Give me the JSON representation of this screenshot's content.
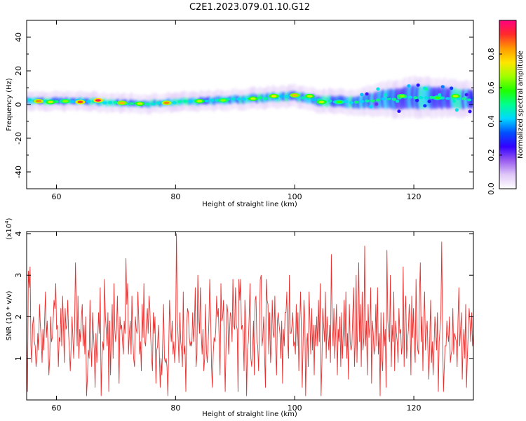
{
  "title": "C2E1.2023.079.01.10.G12",
  "colors": {
    "snr_line": "#e8302e",
    "axes": "#000000",
    "colormap": [
      "#ffffff",
      "#e0c8f8",
      "#9a5cf0",
      "#3300ff",
      "#0050ff",
      "#00d8ff",
      "#00ff90",
      "#20ff00",
      "#a0ff00",
      "#ffe600",
      "#ff9a00",
      "#ff2a2a",
      "#ff0080"
    ]
  },
  "chart_data": [
    {
      "type": "heatmap",
      "xlabel": "Height of straight line (km)",
      "ylabel": "Frequency (Hz)",
      "xlim": [
        55,
        130
      ],
      "ylim": [
        -50,
        50
      ],
      "xticks": [
        60,
        80,
        100,
        120
      ],
      "yticks": [
        -40,
        -20,
        0,
        20,
        40
      ],
      "ytick_labels": [
        "-40",
        "-20",
        "0",
        "20",
        "40"
      ],
      "colorbar": {
        "label": "Normalized spectral amplitude",
        "range": [
          0.0,
          1.0
        ],
        "ticks": [
          0.0,
          0.2,
          0.4,
          0.6,
          0.8
        ],
        "tick_labels": [
          "0.0",
          "0.2",
          "0.4",
          "0.6",
          "0.8"
        ]
      },
      "band_center": [
        {
          "x": 55,
          "y": 2.5
        },
        {
          "x": 60,
          "y": 2
        },
        {
          "x": 65,
          "y": 2
        },
        {
          "x": 70,
          "y": 1
        },
        {
          "x": 75,
          "y": 0.5
        },
        {
          "x": 80,
          "y": 1.5
        },
        {
          "x": 85,
          "y": 2
        },
        {
          "x": 90,
          "y": 3
        },
        {
          "x": 95,
          "y": 4
        },
        {
          "x": 100,
          "y": 5
        },
        {
          "x": 105,
          "y": 2
        },
        {
          "x": 110,
          "y": 1.5
        },
        {
          "x": 115,
          "y": 3
        },
        {
          "x": 120,
          "y": 4.5
        },
        {
          "x": 125,
          "y": 4
        },
        {
          "x": 130,
          "y": 3
        }
      ],
      "band_halfwidth": [
        {
          "x": 55,
          "y": 3
        },
        {
          "x": 80,
          "y": 3
        },
        {
          "x": 100,
          "y": 4
        },
        {
          "x": 110,
          "y": 5
        },
        {
          "x": 115,
          "y": 8
        },
        {
          "x": 120,
          "y": 10
        },
        {
          "x": 130,
          "y": 8
        }
      ],
      "hotspots": [
        {
          "x": 57,
          "y": 2,
          "v": 0.85
        },
        {
          "x": 59,
          "y": 1.5,
          "v": 0.7
        },
        {
          "x": 61.5,
          "y": 2,
          "v": 0.65
        },
        {
          "x": 64,
          "y": 1.5,
          "v": 0.9
        },
        {
          "x": 67,
          "y": 2.5,
          "v": 0.95
        },
        {
          "x": 71,
          "y": 1,
          "v": 0.8
        },
        {
          "x": 74,
          "y": 0.5,
          "v": 0.7
        },
        {
          "x": 78.5,
          "y": 1,
          "v": 0.85
        },
        {
          "x": 84,
          "y": 2,
          "v": 0.7
        },
        {
          "x": 88,
          "y": 2.5,
          "v": 0.65
        },
        {
          "x": 93,
          "y": 3.5,
          "v": 0.7
        },
        {
          "x": 96.5,
          "y": 5,
          "v": 0.75
        },
        {
          "x": 100,
          "y": 5.5,
          "v": 0.8
        },
        {
          "x": 102.5,
          "y": 5,
          "v": 0.7
        },
        {
          "x": 104.5,
          "y": 1.5,
          "v": 0.7
        },
        {
          "x": 107.5,
          "y": 1.5,
          "v": 0.6
        },
        {
          "x": 118,
          "y": 5,
          "v": 0.65
        },
        {
          "x": 124,
          "y": 4,
          "v": 0.6
        },
        {
          "x": 127,
          "y": 5,
          "v": 0.7
        }
      ]
    },
    {
      "type": "line",
      "xlabel": "Height of straight line (km)",
      "ylabel": "SNR (10 * v/v)",
      "scale_label": "(x10",
      "scale_exponent": "4",
      "scale_close": ")",
      "xlim": [
        55,
        130
      ],
      "ylim": [
        0,
        4.05
      ],
      "xticks": [
        60,
        80,
        100,
        120
      ],
      "yticks": [
        1,
        2,
        3,
        4
      ],
      "series": [
        {
          "x_start": 55,
          "x_end": 130,
          "values": [
            1.5,
            0.2,
            3.1,
            2.7,
            3.2,
            1.3,
            0.9,
            1.8,
            2.0,
            1.4,
            1.3,
            0.8,
            1.0,
            1.6,
            1.2,
            2.3,
            1.8,
            1.5,
            0.9,
            1.7,
            1.2,
            1.9,
            2.6,
            1.5,
            1.9,
            1.3,
            0.6,
            1.0,
            2.0,
            1.4,
            1.5,
            1.9,
            2.4,
            2.2,
            2.8,
            1.7,
            1.8,
            0.8,
            1.5,
            1.4,
            2.2,
            1.3,
            2.5,
            1.8,
            0.9,
            2.2,
            1.7,
            1.8,
            2.4,
            1.6,
            1.2,
            0.7,
            1.3,
            2.0,
            1.5,
            1.0,
            1.7,
            3.3,
            2.2,
            1.3,
            2.5,
            1.0,
            1.7,
            1.4,
            2.0,
            2.3,
            1.3,
            1.8,
            1.1,
            2.0,
            0.1,
            0.5,
            1.2,
            1.0,
            2.4,
            1.3,
            0.8,
            2.1,
            1.6,
            1.2,
            0.3,
            1.6,
            0.9,
            1.4,
            2.1,
            1.6,
            2.7,
            0.1,
            1.0,
            1.4,
            1.2,
            2.9,
            2.0,
            1.7,
            1.3,
            2.1,
            0.2,
            1.9,
            0.6,
            1.6,
            2.3,
            1.0,
            2.8,
            1.7,
            1.4,
            1.7,
            2.5,
            1.4,
            0.4,
            2.0,
            1.7,
            1.8,
            1.4,
            1.1,
            1.9,
            1.6,
            3.4,
            2.3,
            2.8,
            1.1,
            1.6,
            1.9,
            1.1,
            2.5,
            1.6,
            1.0,
            0.8,
            2.0,
            1.7,
            1.6,
            2.6,
            1.9,
            1.1,
            1.4,
            0.7,
            2.3,
            1.5,
            2.8,
            1.4,
            1.3,
            1.9,
            2.2,
            1.6,
            2.5,
            2.2,
            1.5,
            1.0,
            0.7,
            2.1,
            1.6,
            2.0,
            0.4,
            1.2,
            1.3,
            1.8,
            1.2,
            0.3,
            1.0,
            0.6,
            1.4,
            2.3,
            1.0,
            0.9,
            1.0,
            0.8,
            0.1,
            1.3,
            2.4,
            1.7,
            1.4,
            1.9,
            1.1,
            1.4,
            0.9,
            1.3,
            4.0,
            2.0,
            1.5,
            0.9,
            2.1,
            1.4,
            1.2,
            0.8,
            2.6,
            1.1,
            1.3,
            0.2,
            1.8,
            2.2,
            2.1,
            1.5,
            1.3,
            1.4,
            1.3,
            2.1,
            1.4,
            1.8,
            2.7,
            0.8,
            1.1,
            3.0,
            2.0,
            1.6,
            2.7,
            1.6,
            1.1,
            1.7,
            0.7,
            1.0,
            2.3,
            1.2,
            0.9,
            1.3,
            1.9,
            2.9,
            2.0,
            0.8,
            0.3,
            1.1,
            1.5,
            1.4,
            1.7,
            2.5,
            2.0,
            2.2,
            1.4,
            0.6,
            2.8,
            1.9,
            2.0,
            2.4,
            1.3,
            0.2,
            1.3,
            2.3,
            2.1,
            1.1,
            1.6,
            2.1,
            2.0,
            1.4,
            2.9,
            1.8,
            1.7,
            2.7,
            1.8,
            1.7,
            0.2,
            2.9,
            2.4,
            2.9,
            1.7,
            1.8,
            1.6,
            0.7,
            2.4,
            1.9,
            0.1,
            1.2,
            1.4,
            2.0,
            2.8,
            1.0,
            0.8,
            1.2,
            1.9,
            0.6,
            2.4,
            2.5,
            1.4,
            1.3,
            0.7,
            1.6,
            2.9,
            3.0,
            1.3,
            1.5,
            2.0,
            1.1,
            0.3,
            2.9,
            2.4,
            2.3,
            1.1,
            2.1,
            0.9,
            1.3,
            2.4,
            1.6,
            1.5,
            2.5,
            1.2,
            0.6,
            1.9,
            2.1,
            1.8,
            1.6,
            1.0,
            1.9,
            0.4,
            1.7,
            1.3,
            2.1,
            2.1,
            2.6,
            1.4,
            1.0,
            3.0,
            1.6,
            1.6,
            1.8,
            2.1,
            1.3,
            1.4,
            1.1,
            2.3,
            1.3,
            2.1,
            0.7,
            1.8,
            2.6,
            1.7,
            0.3,
            1.4,
            2.4,
            2.0,
            0.1,
            1.3,
            1.6,
            0.8,
            2.6,
            1.9,
            1.1,
            2.2,
            1.2,
            1.8,
            0.6,
            1.8,
            1.3,
            2.0,
            1.3,
            2.4,
            1.4,
            2.8,
            0.1,
            0.9,
            2.2,
            1.8,
            1.4,
            2.6,
            1.0,
            2.0,
            1.6,
            1.2,
            1.8,
            0.9,
            3.5,
            2.0,
            1.3,
            2.2,
            1.0,
            1.6,
            2.3,
            0.6,
            1.7,
            1.4,
            2.0,
            0.8,
            2.1,
            1.0,
            1.6,
            2.4,
            1.3,
            2.6,
            1.0,
            1.6,
            0.5,
            2.3,
            1.4,
            1.2,
            1.3,
            2.0,
            2.7,
            0.8,
            1.4,
            3.0,
            0.9,
            2.0,
            3.3,
            1.4,
            2.3,
            0.8,
            2.6,
            1.2,
            1.5,
            3.7,
            1.3,
            1.9,
            0.6,
            2.3,
            1.5,
            1.8,
            2.7,
            0.4,
            1.9,
            1.6,
            1.1,
            1.3,
            2.3,
            1.3,
            2.7,
            1.1,
            1.6,
            0.1,
            2.1,
            1.0,
            0.7,
            2.1,
            1.3,
            1.7,
            0.3,
            3.6,
            1.9,
            1.6,
            1.4,
            3.0,
            0.8,
            1.8,
            1.4,
            2.6,
            0.7,
            1.9,
            1.6,
            1.4,
            0.9,
            2.2,
            1.6,
            1.7,
            1.1,
            1.3,
            3.2,
            0.8,
            2.1,
            2.5,
            1.0,
            1.4,
            1.7,
            2.3,
            1.9,
            0.6,
            2.5,
            1.5,
            2.2,
            1.3,
            0.9,
            2.9,
            1.6,
            1.2,
            1.1,
            2.5,
            3.3,
            1.4,
            2.0,
            0.7,
            1.9,
            2.6,
            1.2,
            1.6,
            1.9,
            1.1,
            0.5,
            1.5,
            2.4,
            0.9,
            1.4,
            0.6,
            1.3,
            2.0,
            1.6,
            1.2,
            2.1,
            0.2,
            1.4,
            1.7,
            2.0,
            3.8,
            1.6,
            0.2,
            0.8,
            1.3,
            1.3,
            1.9,
            1.6,
            1.4,
            2.0,
            0.9,
            1.1,
            1.2,
            2.2,
            1.1,
            1.6,
            1.5,
            1.4,
            0.8,
            1.9,
            2.7,
            1.3,
            1.7,
            2.1,
            0.5,
            1.4,
            1.7,
            1.0,
            2.3,
            0.3,
            1.1,
            1.6,
            2.2,
            1.9,
            1.4,
            2.1,
            1.3,
            1.6
          ]
        }
      ]
    }
  ]
}
